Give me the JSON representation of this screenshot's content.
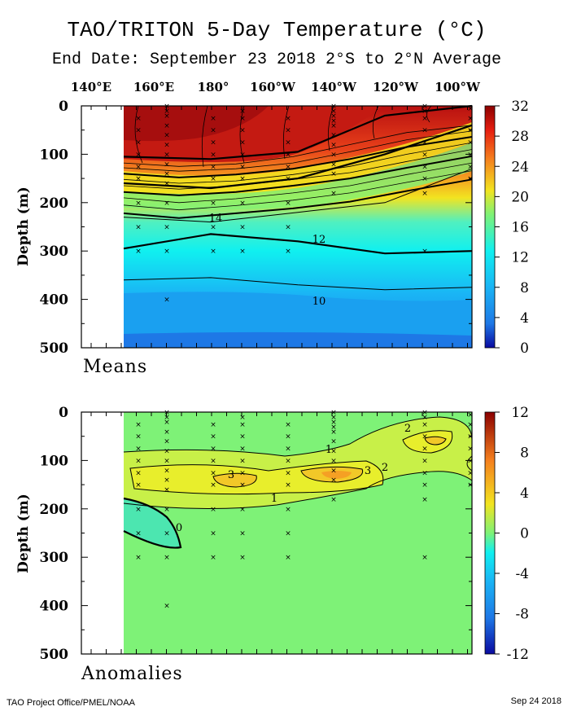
{
  "title": "TAO/TRITON 5-Day Temperature (°C)",
  "subtitle": "End Date: September 23 2018  2°S to 2°N Average",
  "footer_left": "TAO Project Office/PMEL/NOAA",
  "footer_right": "Sep 24 2018",
  "colors": {
    "dark_red": "#8b0000",
    "red": "#e61e10",
    "orange": "#f5801e",
    "yellow": "#f2e420",
    "green": "#7ef277",
    "cyan": "#10f0f0",
    "light_blue": "#1ab4f5",
    "blue": "#1e78e6",
    "dark_blue": "#0a0aa0"
  },
  "chart_data": [
    {
      "type": "heatmap",
      "panel_label": "Means",
      "ylabel": "Depth (m)",
      "x_ticks": [
        "140°E",
        "160°E",
        "180°",
        "160°W",
        "140°W",
        "120°W",
        "100°W"
      ],
      "y_ticks": [
        "0",
        "100",
        "200",
        "300",
        "400",
        "500"
      ],
      "ylim": [
        500,
        0
      ],
      "colorbar": {
        "ticks": [
          "32",
          "28",
          "24",
          "20",
          "16",
          "12",
          "8",
          "4",
          "0"
        ],
        "range": [
          0,
          32
        ]
      },
      "contour_labels": [
        "14",
        "12",
        "10"
      ],
      "depth_levels": [
        0,
        50,
        100,
        150,
        200,
        250,
        300,
        350,
        400,
        450,
        500
      ],
      "isotherms": [
        {
          "t": 28,
          "x": [
            0,
            0.25,
            0.5,
            0.75,
            1
          ],
          "depth": [
            105,
            110,
            95,
            20,
            0
          ]
        },
        {
          "t": 20,
          "x": [
            0,
            0.25,
            0.5,
            0.75,
            1
          ],
          "depth": [
            160,
            170,
            150,
            100,
            40
          ]
        },
        {
          "t": 14,
          "x": [
            0,
            0.25,
            0.5,
            0.75,
            1
          ],
          "depth": [
            230,
            240,
            220,
            200,
            130
          ]
        },
        {
          "t": 12,
          "x": [
            0,
            0.25,
            0.5,
            0.75,
            1
          ],
          "depth": [
            295,
            265,
            280,
            305,
            300
          ]
        },
        {
          "t": 10,
          "x": [
            0,
            0.25,
            0.5,
            0.75,
            1
          ],
          "depth": [
            360,
            355,
            370,
            380,
            375
          ]
        }
      ]
    },
    {
      "type": "heatmap",
      "panel_label": "Anomalies",
      "ylabel": "Depth (m)",
      "x_ticks": [
        "140°E",
        "160°E",
        "180°",
        "160°W",
        "140°W",
        "120°W",
        "100°W"
      ],
      "y_ticks": [
        "0",
        "100",
        "200",
        "300",
        "400",
        "500"
      ],
      "ylim": [
        500,
        0
      ],
      "colorbar": {
        "ticks": [
          "12",
          "8",
          "4",
          "0",
          "-4",
          "-8",
          "-12"
        ],
        "range": [
          -12,
          12
        ]
      },
      "contour_labels": [
        "1",
        "1",
        "2",
        "2",
        "3",
        "3",
        "0"
      ],
      "regions": [
        {
          "anomaly": 1,
          "desc_depth_range": [
            60,
            200
          ]
        },
        {
          "anomaly": 2,
          "desc_depth_range": [
            100,
            160
          ]
        },
        {
          "anomaly": 3,
          "desc_depth_range": [
            115,
            145
          ]
        },
        {
          "anomaly": -1,
          "desc_depth_range": [
            180,
            260
          ]
        }
      ]
    }
  ]
}
